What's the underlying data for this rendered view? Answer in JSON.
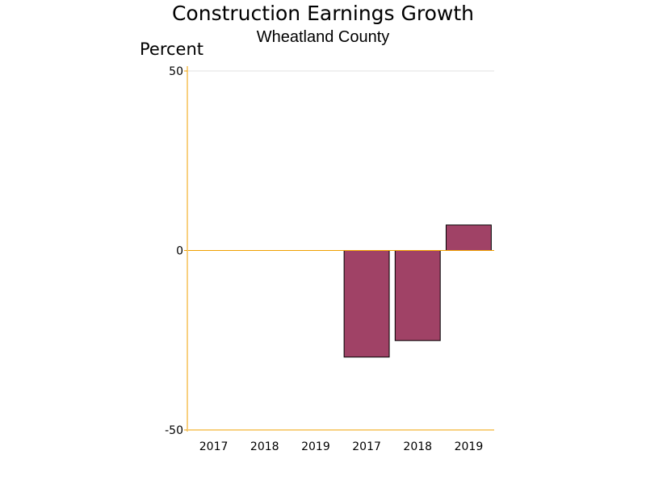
{
  "chart_data": {
    "type": "bar",
    "title": "Construction Earnings Growth",
    "subtitle": "Wheatland County",
    "ylabel": "Percent",
    "ylim": [
      -50,
      50
    ],
    "yticks": [
      -50,
      0,
      50
    ],
    "categories": [
      "2017",
      "2018",
      "2019",
      "2017",
      "2018",
      "2019"
    ],
    "values": [
      null,
      null,
      null,
      -29.7,
      -25.1,
      7.1
    ],
    "grid": false,
    "colors": {
      "bar": "#a04266",
      "bar_outline": "#000000",
      "axis": "#f0a000",
      "top_rule": "#e0e0e0"
    }
  }
}
